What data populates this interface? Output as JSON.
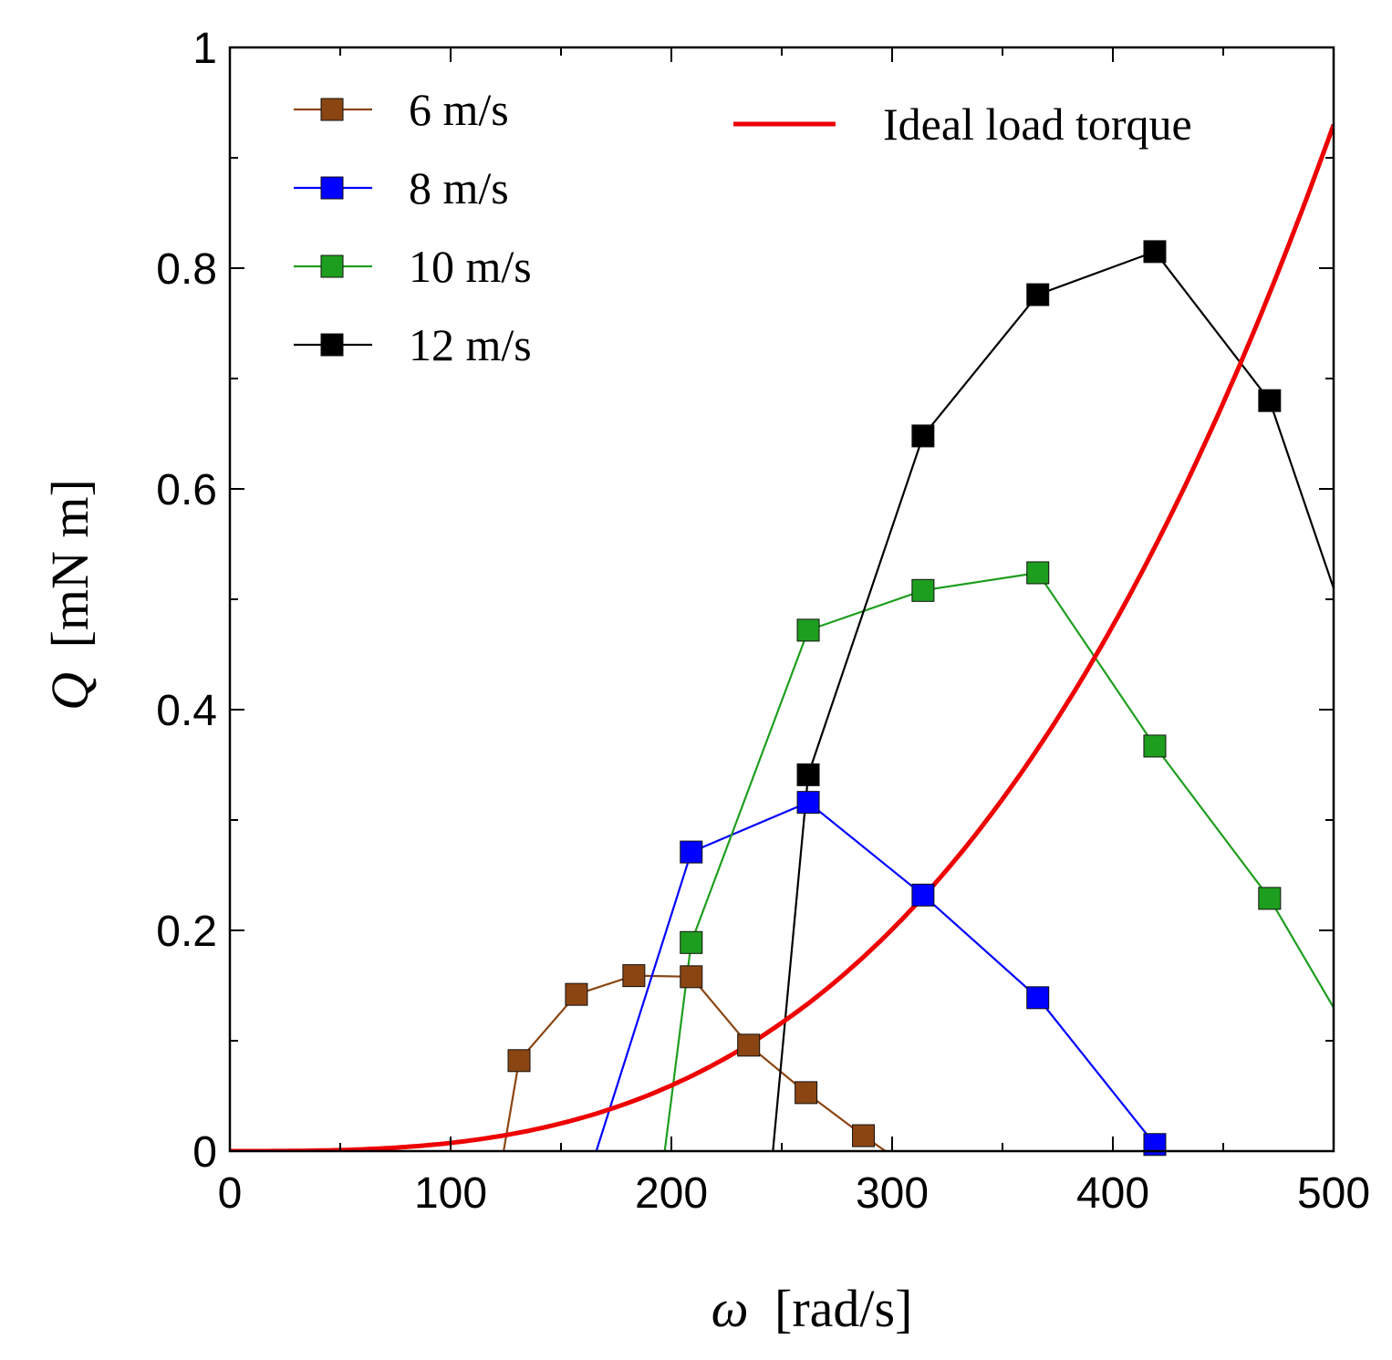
{
  "chart_data": {
    "type": "line",
    "title": "",
    "xlabel": {
      "symbol": "ω",
      "unit": "[rad/s]"
    },
    "ylabel": {
      "symbol": "Q",
      "unit": "[mN m]"
    },
    "xlim": [
      0,
      500
    ],
    "ylim": [
      0,
      1
    ],
    "x_ticks": [
      0,
      100,
      200,
      300,
      400,
      500
    ],
    "x_tick_labels": [
      "0",
      "100",
      "200",
      "300",
      "400",
      "500"
    ],
    "y_ticks": [
      0,
      0.2,
      0.4,
      0.6,
      0.8,
      1
    ],
    "y_tick_labels": [
      "0",
      "0.2",
      "0.4",
      "0.6",
      "0.8",
      "1"
    ],
    "grid": false,
    "legend_position": "top-left",
    "series": [
      {
        "name": "6 m/s",
        "color": "#8B4513",
        "marker": "square",
        "points": [
          [
            131,
            0.082
          ],
          [
            157,
            0.142
          ],
          [
            183,
            0.159
          ],
          [
            209,
            0.158
          ],
          [
            235,
            0.096
          ],
          [
            261,
            0.053
          ],
          [
            287,
            0.014
          ]
        ],
        "line_ends": [
          [
            124,
            0.0
          ],
          [
            297,
            0.0
          ]
        ]
      },
      {
        "name": "8 m/s",
        "color": "#0000FF",
        "marker": "square",
        "points": [
          [
            209,
            0.271
          ],
          [
            262,
            0.316
          ],
          [
            314,
            0.232
          ],
          [
            366,
            0.139
          ],
          [
            419,
            0.006
          ]
        ],
        "line_ends": [
          [
            166,
            0.0
          ],
          null
        ]
      },
      {
        "name": "10 m/s",
        "color": "#1E9E1E",
        "marker": "square",
        "points": [
          [
            209,
            0.189
          ],
          [
            262,
            0.472
          ],
          [
            314,
            0.508
          ],
          [
            366,
            0.524
          ],
          [
            419,
            0.367
          ],
          [
            471,
            0.229
          ]
        ],
        "line_ends": [
          [
            197,
            0.0
          ],
          [
            500,
            0.13
          ]
        ]
      },
      {
        "name": "12 m/s",
        "color": "#000000",
        "marker": "square",
        "points": [
          [
            262,
            0.341
          ],
          [
            314,
            0.648
          ],
          [
            366,
            0.776
          ],
          [
            419,
            0.815
          ],
          [
            471,
            0.68
          ]
        ],
        "line_ends": [
          [
            246,
            0.0
          ],
          [
            500,
            0.51
          ]
        ]
      }
    ],
    "curve": {
      "name": "Ideal load torque",
      "color": "#EE0000",
      "formula": "Q = 0.00000000744 * omega^3",
      "x_range": [
        0,
        500
      ]
    }
  }
}
